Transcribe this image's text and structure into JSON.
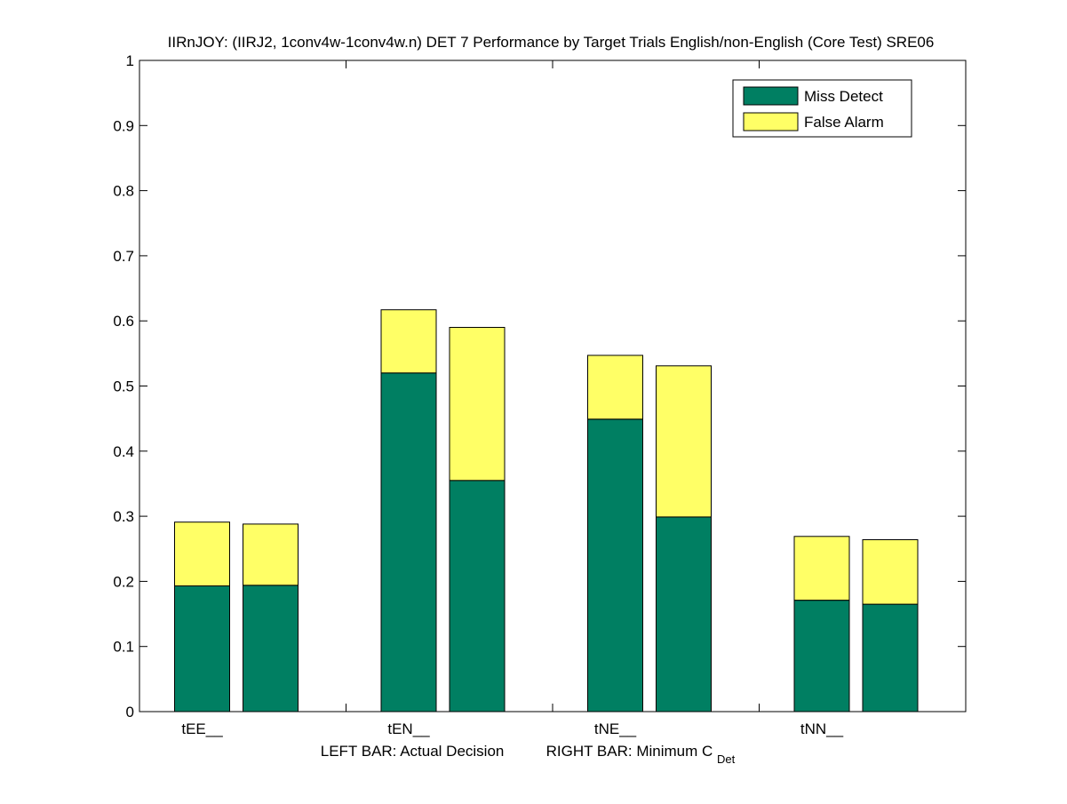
{
  "chart_data": {
    "type": "bar",
    "stacked": true,
    "grouped": true,
    "title": "IIRnJOY: (IIRJ2, 1conv4w-1conv4w.n) DET 7 Performance by Target Trials English/non-English (Core Test) SRE06",
    "xlabel": {
      "left_part": "LEFT BAR: Actual Decision",
      "right_part": "RIGHT BAR: Minimum C",
      "right_part_subscript": "Det"
    },
    "ylabel": "",
    "ylim": [
      0,
      1
    ],
    "yticks": [
      0,
      0.1,
      0.2,
      0.3,
      0.4,
      0.5,
      0.6,
      0.7,
      0.8,
      0.9,
      1
    ],
    "ytick_labels": [
      "0",
      "0.1",
      "0.2",
      "0.3",
      "0.4",
      "0.5",
      "0.6",
      "0.7",
      "0.8",
      "0.9",
      "1"
    ],
    "categories": [
      "tEE__",
      "tEN__",
      "tNE__",
      "tNN__"
    ],
    "bar_roles": [
      "Actual Decision",
      "Minimum C_Det"
    ],
    "series": [
      {
        "name": "Miss Detect",
        "color": "#007f62",
        "values": [
          [
            0.193,
            0.194
          ],
          [
            0.52,
            0.355
          ],
          [
            0.449,
            0.299
          ],
          [
            0.171,
            0.165
          ]
        ]
      },
      {
        "name": "False Alarm",
        "color": "#ffff66",
        "values": [
          [
            0.098,
            0.094
          ],
          [
            0.097,
            0.235
          ],
          [
            0.098,
            0.232
          ],
          [
            0.098,
            0.099
          ]
        ]
      }
    ],
    "legend": {
      "placement": "top-right",
      "entries": [
        "Miss Detect",
        "False Alarm"
      ]
    },
    "grid": false
  }
}
